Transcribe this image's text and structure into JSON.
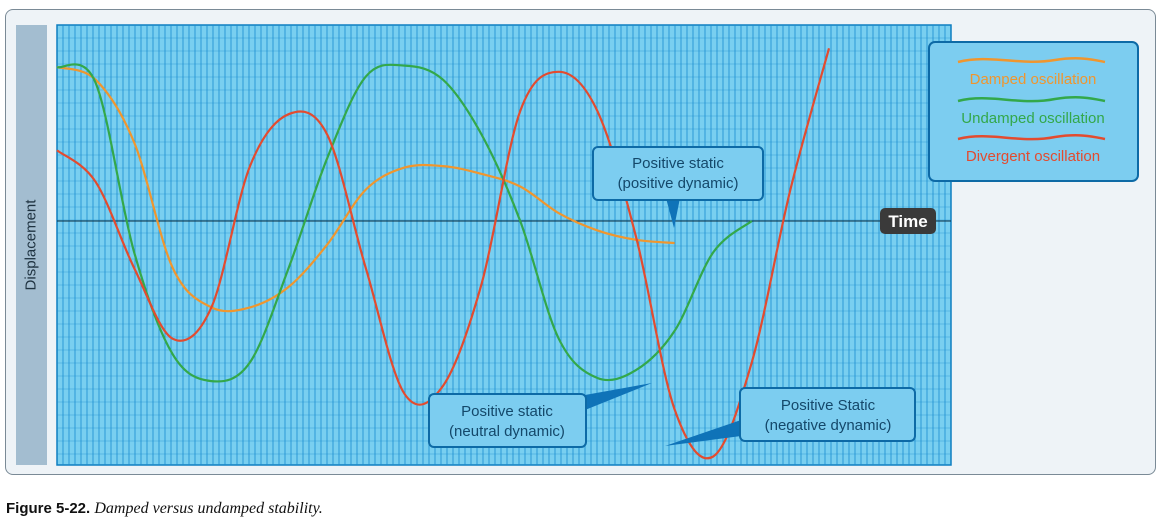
{
  "chart_data": {
    "type": "line",
    "title": "",
    "xlabel": "Time",
    "ylabel": "Displacement",
    "grid": true,
    "legend_position": "top-right",
    "series": [
      {
        "name": "Damped oscillation",
        "color": "#f0962e",
        "points": [
          [
            0,
            0.98
          ],
          [
            1,
            0.9
          ],
          [
            2,
            0.5
          ],
          [
            3,
            -0.3
          ],
          [
            4,
            -0.55
          ],
          [
            5,
            -0.55
          ],
          [
            6,
            -0.42
          ],
          [
            7,
            -0.15
          ],
          [
            8,
            0.2
          ],
          [
            9,
            0.34
          ],
          [
            10,
            0.35
          ],
          [
            11,
            0.3
          ],
          [
            12,
            0.22
          ],
          [
            13,
            0.05
          ],
          [
            14,
            -0.06
          ],
          [
            15,
            -0.12
          ],
          [
            16,
            -0.14
          ]
        ]
      },
      {
        "name": "Undamped oscillation",
        "color": "#33a84a",
        "points": [
          [
            0,
            0.98
          ],
          [
            1,
            0.88
          ],
          [
            2,
            -0.2
          ],
          [
            3,
            -0.85
          ],
          [
            4,
            -1.02
          ],
          [
            5,
            -0.9
          ],
          [
            6,
            -0.3
          ],
          [
            7,
            0.4
          ],
          [
            8,
            0.92
          ],
          [
            9,
            0.99
          ],
          [
            10,
            0.9
          ],
          [
            11,
            0.55
          ],
          [
            12,
            0
          ],
          [
            13,
            -0.75
          ],
          [
            14,
            -1.0
          ],
          [
            15,
            -0.95
          ],
          [
            16,
            -0.7
          ],
          [
            17,
            -0.2
          ],
          [
            18,
            0
          ]
        ]
      },
      {
        "name": "Divergent oscillation",
        "color": "#e34b2f",
        "points": [
          [
            0,
            0.45
          ],
          [
            1,
            0.25
          ],
          [
            2,
            -0.3
          ],
          [
            3,
            -0.75
          ],
          [
            4,
            -0.55
          ],
          [
            5,
            0.35
          ],
          [
            6,
            0.68
          ],
          [
            7,
            0.55
          ],
          [
            8,
            -0.3
          ],
          [
            9,
            -1.1
          ],
          [
            10,
            -1.05
          ],
          [
            11,
            -0.4
          ],
          [
            12,
            0.7
          ],
          [
            13,
            0.95
          ],
          [
            14,
            0.7
          ],
          [
            15,
            -0.1
          ],
          [
            16,
            -1.2
          ],
          [
            17,
            -1.5
          ],
          [
            18,
            -0.9
          ],
          [
            19,
            0.2
          ],
          [
            20,
            1.1
          ]
        ]
      }
    ],
    "callouts": [
      {
        "line1": "Positive static",
        "line2": "(positive dynamic)"
      },
      {
        "line1": "Positive static",
        "line2": "(neutral dynamic)"
      },
      {
        "line1": "Positive Static",
        "line2": "(negative dynamic)"
      }
    ],
    "time_label": "Time"
  },
  "caption": {
    "figure": "Figure 5-22.",
    "text": "Damped versus undamped stability."
  }
}
